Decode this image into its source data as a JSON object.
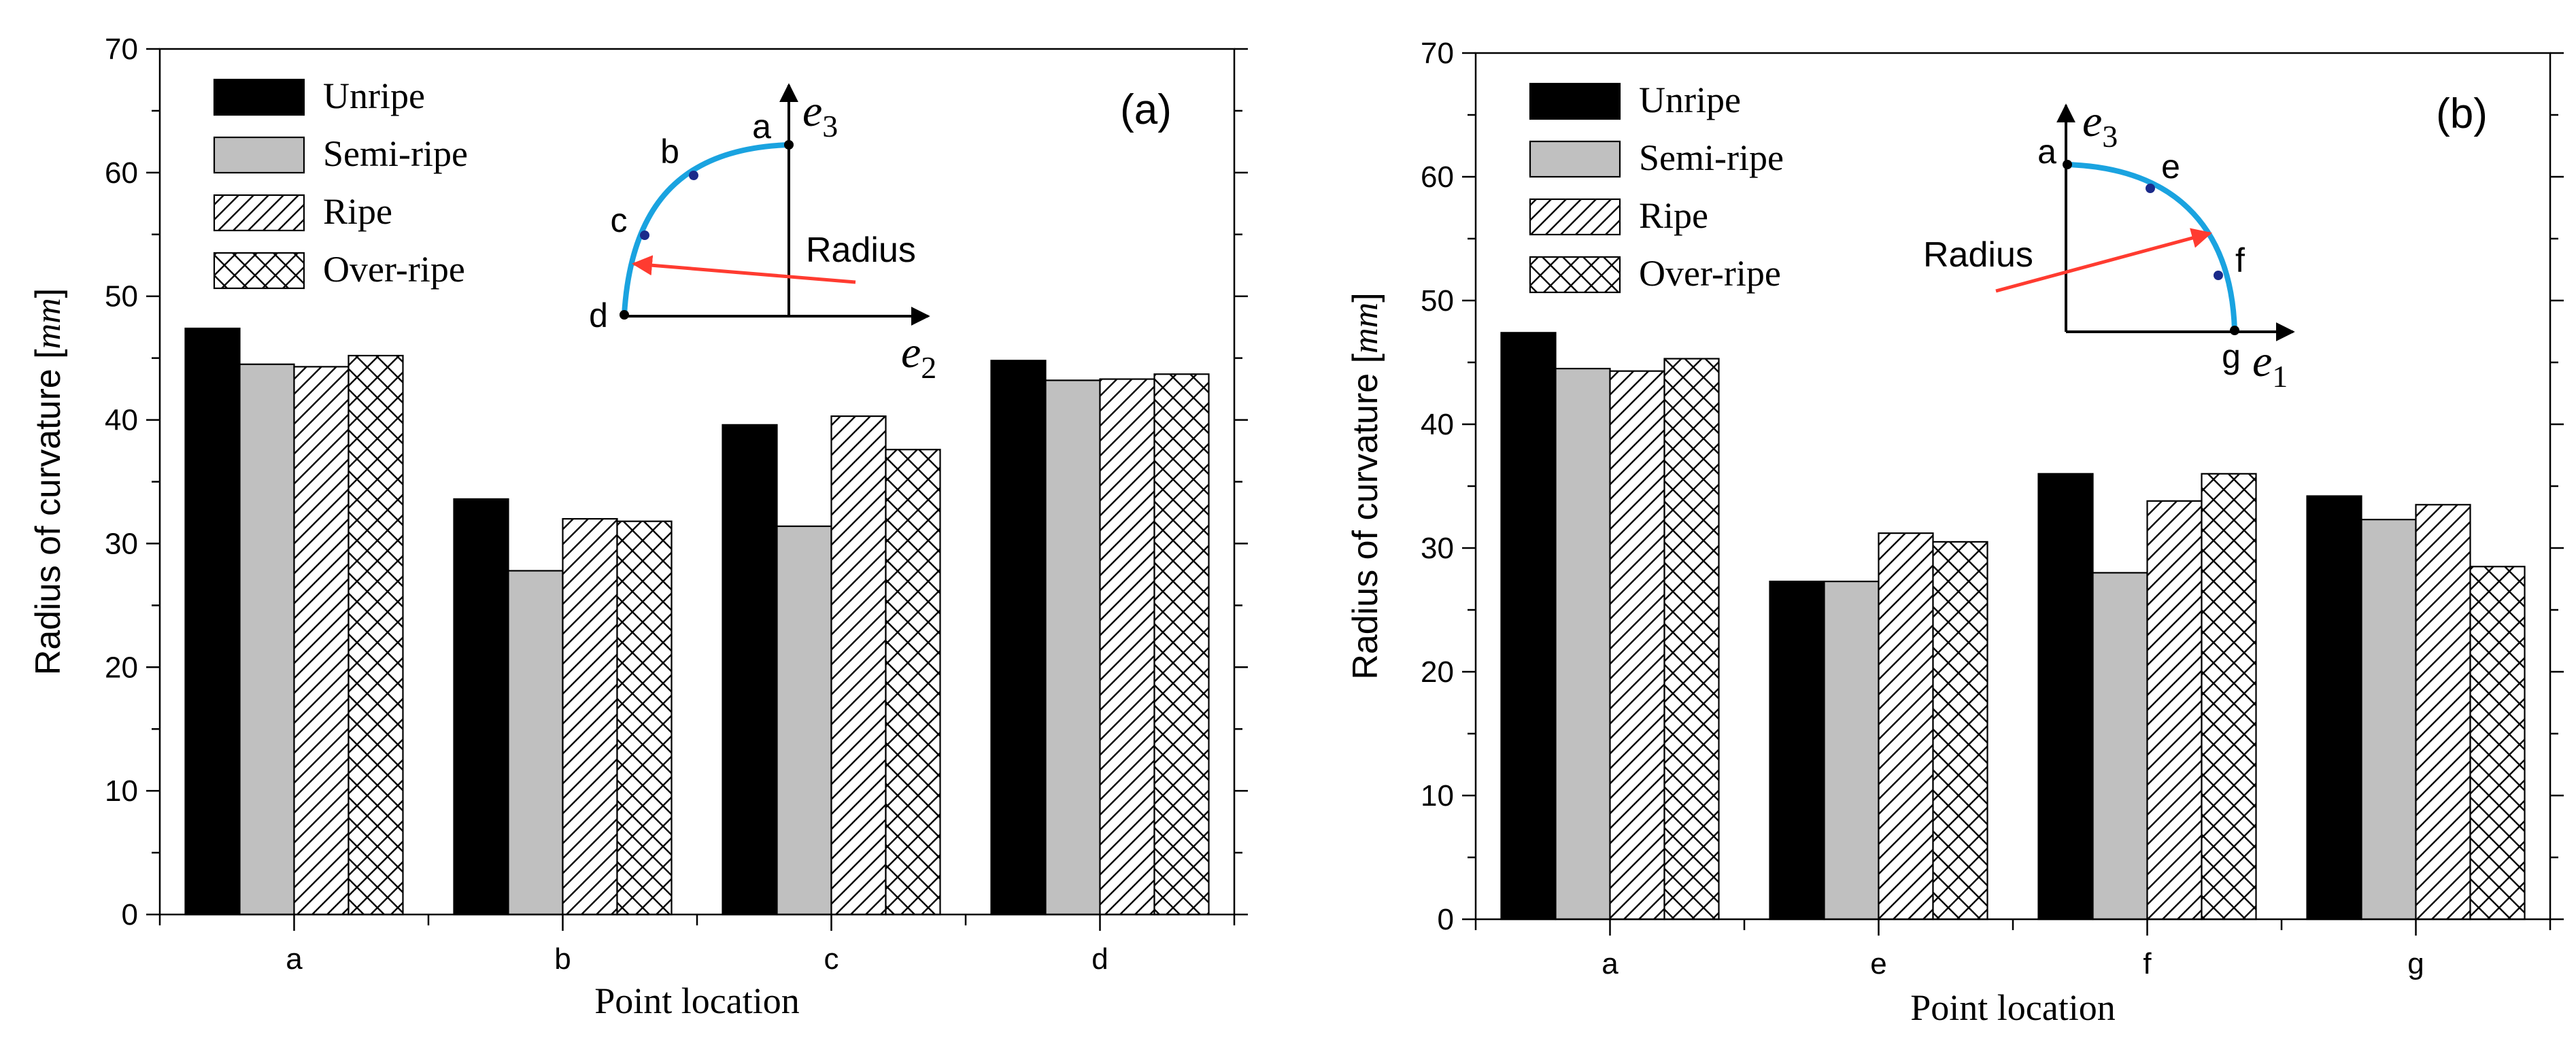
{
  "figure": {
    "background": "#ffffff"
  },
  "legend": [
    {
      "key": "unripe",
      "label": "Unripe"
    },
    {
      "key": "semi",
      "label": "Semi-ripe"
    },
    {
      "key": "ripe",
      "label": "Ripe"
    },
    {
      "key": "over",
      "label": "Over-ripe"
    }
  ],
  "chart_data": [
    {
      "type": "bar",
      "panel_label": "(a)",
      "categories": [
        "a",
        "b",
        "c",
        "d"
      ],
      "series": [
        {
          "name": "Unripe",
          "values": [
            47.4,
            33.6,
            39.6,
            44.8
          ]
        },
        {
          "name": "Semi-ripe",
          "values": [
            44.5,
            27.8,
            31.4,
            43.2
          ]
        },
        {
          "name": "Ripe",
          "values": [
            44.3,
            32.0,
            40.3,
            43.3
          ]
        },
        {
          "name": "Over-ripe",
          "values": [
            45.2,
            31.8,
            37.6,
            43.7
          ]
        }
      ],
      "xlabel": "Point location",
      "ylabel": "Radius of curvature [mm]",
      "ylabel_text": "Radius of curvature ",
      "ylabel_unit": "mm",
      "ylim": [
        0,
        70
      ],
      "yticks": [
        0,
        10,
        20,
        30,
        40,
        50,
        60,
        70
      ],
      "legend_position": "top-left",
      "inset": {
        "points": [
          "a",
          "b",
          "c",
          "d"
        ],
        "axis_labels": [
          {
            "base": "e",
            "sub": "3"
          },
          {
            "base": "e",
            "sub": "2"
          }
        ],
        "arrow_label": "Radius"
      }
    },
    {
      "type": "bar",
      "panel_label": "(b)",
      "categories": [
        "a",
        "e",
        "f",
        "g"
      ],
      "series": [
        {
          "name": "Unripe",
          "values": [
            47.4,
            27.3,
            36.0,
            34.2
          ]
        },
        {
          "name": "Semi-ripe",
          "values": [
            44.5,
            27.3,
            28.0,
            32.3
          ]
        },
        {
          "name": "Ripe",
          "values": [
            44.3,
            31.2,
            33.8,
            33.5
          ]
        },
        {
          "name": "Over-ripe",
          "values": [
            45.3,
            30.5,
            36.0,
            28.5
          ]
        }
      ],
      "xlabel": "Point location",
      "ylabel": "Radius of curvature [mm]",
      "ylabel_text": "Radius of curvature ",
      "ylabel_unit": "mm",
      "ylim": [
        0,
        70
      ],
      "yticks": [
        0,
        10,
        20,
        30,
        40,
        50,
        60,
        70
      ],
      "legend_position": "top-left",
      "inset": {
        "points": [
          "a",
          "e",
          "f",
          "g"
        ],
        "axis_labels": [
          {
            "base": "e",
            "sub": "3"
          },
          {
            "base": "e",
            "sub": "1"
          }
        ],
        "arrow_label": "Radius"
      }
    }
  ]
}
